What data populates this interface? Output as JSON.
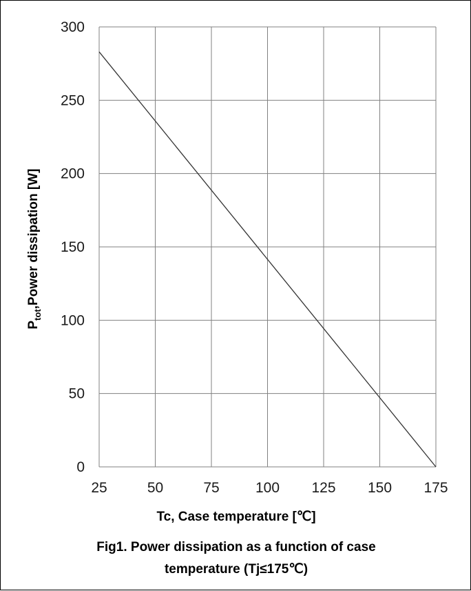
{
  "chart_data": {
    "type": "line",
    "title": "",
    "xlabel": "Tc, Case temperature [℃]",
    "ylabel_main": "P",
    "ylabel_sub": "tot",
    "ylabel_rest": ",Power dissipation [W]",
    "xlim": [
      25,
      175
    ],
    "ylim": [
      0,
      300
    ],
    "x_ticks": [
      25,
      50,
      75,
      100,
      125,
      150,
      175
    ],
    "y_ticks": [
      0,
      50,
      100,
      150,
      200,
      250,
      300
    ],
    "grid": true,
    "series": [
      {
        "x": [
          25,
          175
        ],
        "y": [
          283,
          0
        ]
      }
    ]
  },
  "caption": {
    "line1": "Fig1. Power dissipation as a function of case",
    "line2": "temperature (Tj≤175℃)"
  },
  "colors": {
    "grid": "#808080",
    "line": "#333333",
    "text": "#000000"
  }
}
